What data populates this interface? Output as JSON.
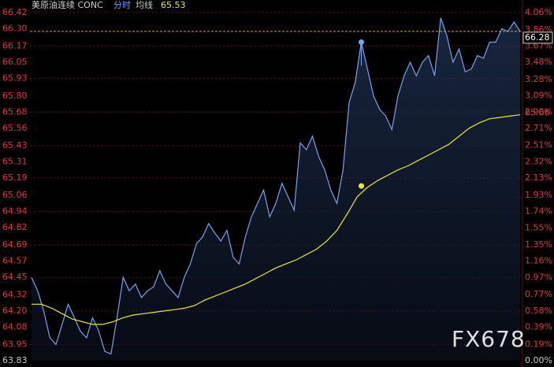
{
  "chart_data": {
    "type": "line",
    "title": "美原油连续 CONC",
    "average_value": 65.53,
    "last_price": 66.28,
    "last_average": 65.66,
    "highlight": {
      "price": 66.2,
      "average": 65.13
    },
    "watermark": "FX678",
    "series": [
      {
        "name": "分时",
        "color": "#7aa2ee",
        "values": [
          64.45,
          64.35,
          64.2,
          64.0,
          63.95,
          64.1,
          64.25,
          64.15,
          64.05,
          64.0,
          64.15,
          64.05,
          63.9,
          63.88,
          64.15,
          64.45,
          64.35,
          64.4,
          64.3,
          64.35,
          64.38,
          64.5,
          64.4,
          64.35,
          64.3,
          64.45,
          64.55,
          64.7,
          64.75,
          64.85,
          64.78,
          64.72,
          64.8,
          64.6,
          64.55,
          64.75,
          64.9,
          65.0,
          65.1,
          64.9,
          65.0,
          65.15,
          65.05,
          64.95,
          65.45,
          65.4,
          65.5,
          65.35,
          65.25,
          65.1,
          65.0,
          65.25,
          65.75,
          65.9,
          66.2,
          66.0,
          65.8,
          65.7,
          65.65,
          65.55,
          65.8,
          65.95,
          66.05,
          65.95,
          66.05,
          66.1,
          65.95,
          66.38,
          66.25,
          66.05,
          66.15,
          65.98,
          66.0,
          66.1,
          66.08,
          66.2,
          66.2,
          66.3,
          66.28,
          66.35,
          66.28
        ]
      },
      {
        "name": "均线",
        "color": "#e8e83a",
        "values": [
          64.25,
          64.25,
          64.22,
          64.18,
          64.14,
          64.12,
          64.1,
          64.1,
          64.12,
          64.15,
          64.17,
          64.18,
          64.19,
          64.2,
          64.21,
          64.22,
          64.24,
          64.28,
          64.31,
          64.34,
          64.37,
          64.4,
          64.44,
          64.48,
          64.52,
          64.55,
          64.58,
          64.62,
          64.66,
          64.72,
          64.8,
          64.92,
          65.05,
          65.12,
          65.17,
          65.21,
          65.25,
          65.28,
          65.32,
          65.36,
          65.4,
          65.44,
          65.5,
          65.56,
          65.6,
          65.63,
          65.64,
          65.65,
          65.66
        ]
      }
    ],
    "ylim": [
      63.83,
      66.42
    ],
    "yticks": [
      63.83,
      63.95,
      64.08,
      {
        "value": 64.2,
        "label": "64.20"
      },
      64.32,
      64.45,
      64.57,
      64.69,
      64.82,
      64.94,
      65.06,
      65.19,
      65.31,
      65.43,
      65.56,
      65.68,
      {
        "value": 65.8,
        "label": "65.80"
      },
      65.93,
      66.05,
      66.17,
      {
        "value": 66.3,
        "label": "66.30"
      },
      66.42
    ],
    "y2lim": [
      0,
      4.06
    ],
    "y2ticks": [
      {
        "value": 0,
        "label": "0.00%"
      },
      {
        "value": 0.19,
        "label": "0.19%"
      },
      {
        "value": 0.39,
        "label": "0.39%"
      },
      {
        "value": 0.58,
        "label": "0.58%"
      },
      {
        "value": 0.77,
        "label": "0.77%"
      },
      {
        "value": 0.97,
        "label": "0.97%"
      },
      {
        "value": 1.16,
        "label": "1.16%"
      },
      {
        "value": 1.35,
        "label": "1.35%"
      },
      {
        "value": 1.55,
        "label": "1.55%"
      },
      {
        "value": 1.74,
        "label": "1.74%"
      },
      {
        "value": 1.93,
        "label": "1.93%"
      },
      {
        "value": 2.13,
        "label": "2.13%"
      },
      {
        "value": 2.32,
        "label": "2.32%"
      },
      {
        "value": 2.51,
        "label": "2.51%"
      },
      {
        "value": 2.71,
        "label": "2.71%"
      },
      {
        "value": 2.9,
        "label": "2.90%"
      },
      {
        "value": 3.09,
        "label": "3.09%"
      },
      {
        "value": 3.28,
        "label": "3.28%"
      },
      {
        "value": 3.48,
        "label": "3.48%"
      },
      {
        "value": 3.67,
        "label": "3.67%"
      },
      {
        "value": 3.86,
        "label": "3.86%"
      },
      {
        "value": 4.06,
        "label": "4.06%"
      }
    ],
    "grid": true
  }
}
